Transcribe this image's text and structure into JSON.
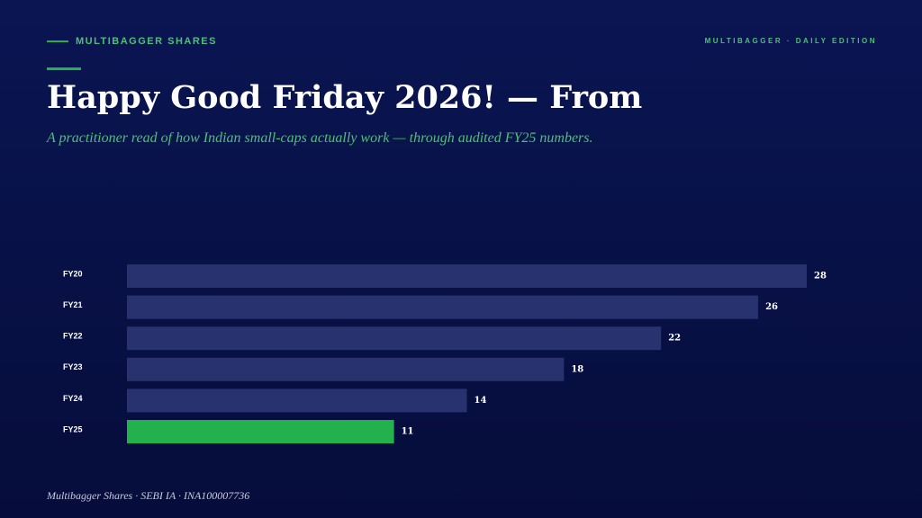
{
  "header": {
    "kicker": "MULTIBAGGER SHARES",
    "edition": "MULTIBAGGER · DAILY EDITION",
    "title": "Happy Good Friday 2026! — From",
    "subtitle": "A practitioner read of how Indian small-caps actually work — through audited FY25 numbers."
  },
  "chart_data": {
    "type": "hbar",
    "categories": [
      "FY20",
      "FY21",
      "FY22",
      "FY23",
      "FY24",
      "FY25"
    ],
    "values": [
      28,
      26,
      22,
      18,
      14,
      11
    ],
    "colors": [
      "#27326f",
      "#27326f",
      "#27326f",
      "#27326f",
      "#27326f",
      "#22b14c"
    ]
  },
  "footer": {
    "text": "Multibagger Shares · SEBI IA · INA100007736"
  }
}
